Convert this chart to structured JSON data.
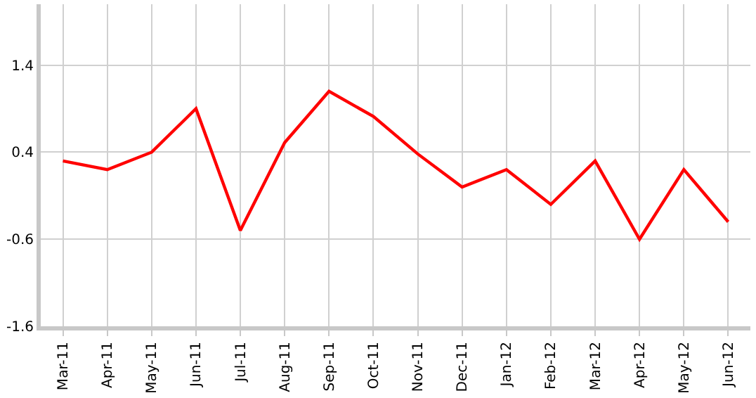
{
  "chart_data": {
    "type": "line",
    "categories": [
      "Mar-11",
      "Apr-11",
      "May-11",
      "Jun-11",
      "Jul-11",
      "Aug-11",
      "Sep-11",
      "Oct-11",
      "Nov-11",
      "Dec-11",
      "Jan-12",
      "Feb-12",
      "Mar-12",
      "Apr-12",
      "May-12",
      "Jun-12"
    ],
    "series": [
      {
        "color": "#ff0000",
        "values": [
          0.3,
          0.2,
          0.4,
          0.9,
          -0.5,
          0.51,
          1.1,
          0.81,
          0.38,
          0.0,
          0.2,
          -0.2,
          0.3,
          -0.6,
          0.2,
          -0.4
        ]
      }
    ],
    "ylim": [
      -1.6,
      2.1
    ],
    "yticks": [
      -1.6,
      -0.6,
      0.4,
      1.4
    ],
    "grid": true,
    "legend": false,
    "marker": "none",
    "line_style": "solid"
  }
}
